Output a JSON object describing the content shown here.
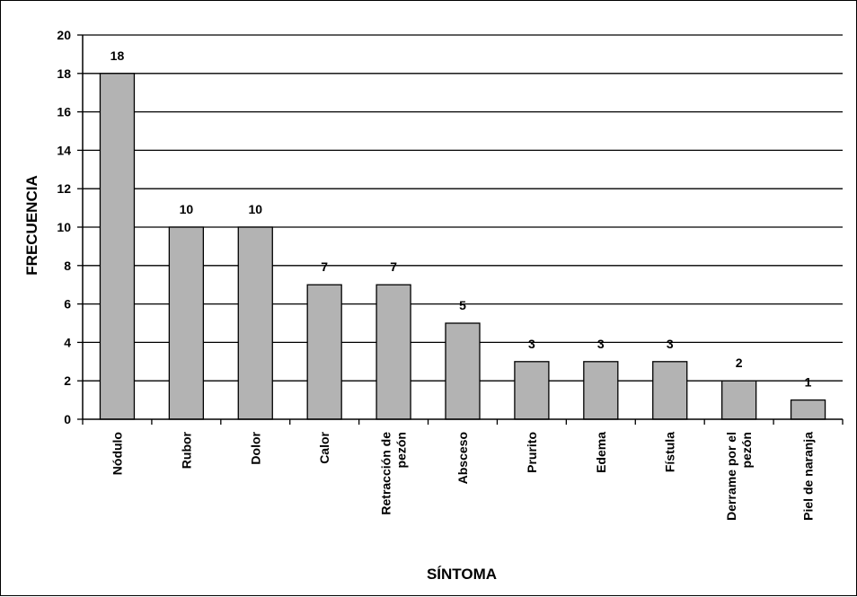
{
  "chart_data": {
    "type": "bar",
    "categories": [
      [
        "Nódulo"
      ],
      [
        "Rubor"
      ],
      [
        "Dolor"
      ],
      [
        "Calor"
      ],
      [
        "Retracción de",
        "pezón"
      ],
      [
        "Absceso"
      ],
      [
        "Prurito"
      ],
      [
        "Edema"
      ],
      [
        "Fístula"
      ],
      [
        "Derrame por el",
        "pezón"
      ],
      [
        "Piel de naranja"
      ]
    ],
    "values": [
      18,
      10,
      10,
      7,
      7,
      5,
      3,
      3,
      3,
      2,
      1
    ],
    "xlabel": "SÍNTOMA",
    "ylabel": "FRECUENCIA",
    "ylim": [
      0,
      20
    ],
    "yticks": [
      0,
      2,
      4,
      6,
      8,
      10,
      12,
      14,
      16,
      18,
      20
    ],
    "grid": true,
    "bar_color": "#b3b3b3",
    "legend": "none"
  }
}
